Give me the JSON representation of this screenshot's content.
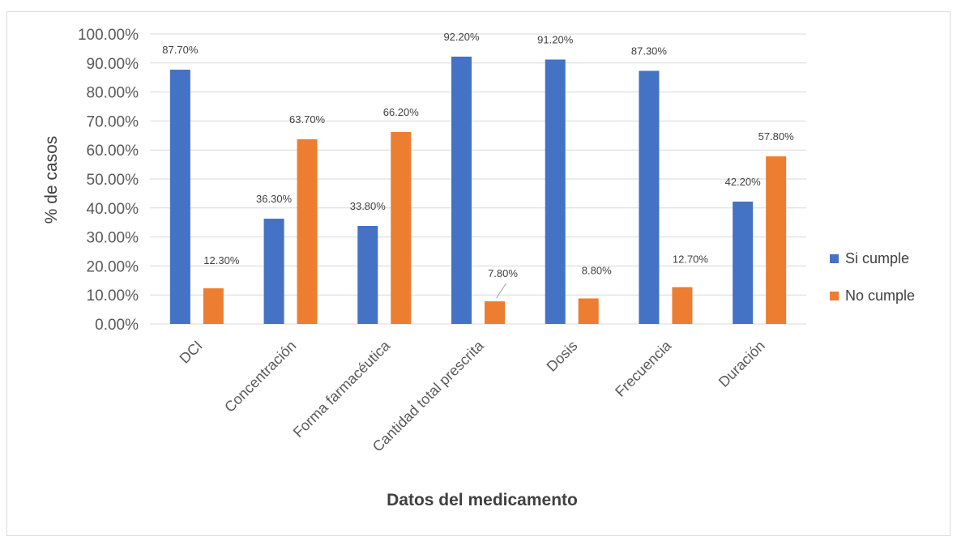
{
  "chart_data": {
    "type": "bar",
    "title": "",
    "xlabel": "Datos del medicamento",
    "ylabel": "% de casos",
    "categories": [
      "DCI",
      "Concentración",
      "Forma farmacéutica",
      "Cantidad total prescrita",
      "Dosis",
      "Frecuencia",
      "Duración"
    ],
    "series": [
      {
        "name": "Si cumple",
        "color": "#4472c4",
        "values": [
          87.7,
          36.3,
          33.8,
          92.2,
          91.2,
          87.3,
          42.2
        ]
      },
      {
        "name": "No cumple",
        "color": "#ed7d31",
        "values": [
          12.3,
          63.7,
          66.2,
          7.8,
          8.8,
          12.7,
          57.8
        ]
      }
    ],
    "data_labels": [
      [
        "87.70%",
        "36.30%",
        "33.80%",
        "92.20%",
        "91.20%",
        "87.30%",
        "42.20%"
      ],
      [
        "12.30%",
        "63.70%",
        "66.20%",
        "7.80%",
        "8.80%",
        "12.70%",
        "57.80%"
      ]
    ],
    "yticks": [
      "0.00%",
      "10.00%",
      "20.00%",
      "30.00%",
      "40.00%",
      "50.00%",
      "60.00%",
      "70.00%",
      "80.00%",
      "90.00%",
      "100.00%"
    ],
    "ylim": [
      0,
      100
    ],
    "grid": true,
    "legend_position": "right",
    "gridline_color": "#d9d9d9"
  }
}
